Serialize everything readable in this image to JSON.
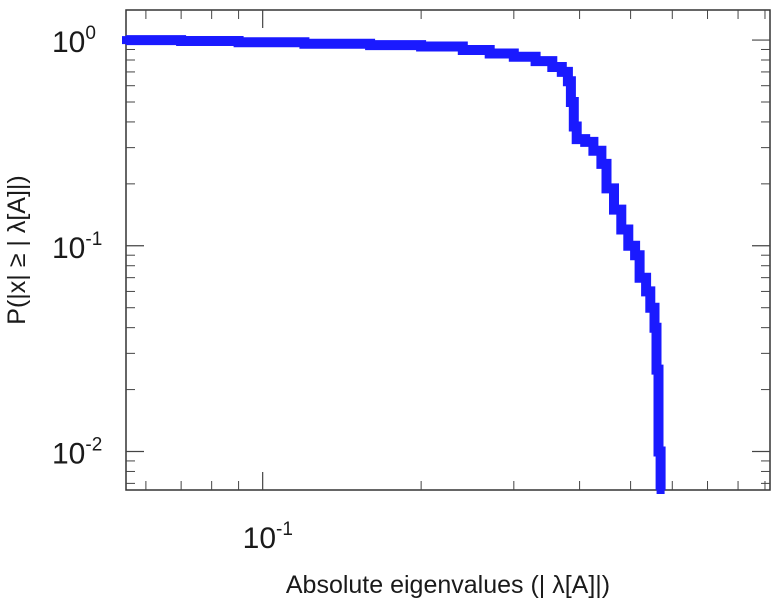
{
  "chart_data": {
    "type": "line",
    "title": "",
    "xlabel": "Absolute eigenvalues (|      λ[A]|)",
    "ylabel": "P(|x|  ≥ | λ[A]|)",
    "x_scale": "log",
    "y_scale": "log",
    "xlim": [
      0.055,
      0.92
    ],
    "ylim": [
      0.0065,
      1.4
    ],
    "grid": false,
    "x_ticks": [
      {
        "value": 0.1,
        "base": "10",
        "exp": "-1"
      }
    ],
    "y_ticks": [
      {
        "value": 1,
        "base": "10",
        "exp": "0"
      },
      {
        "value": 0.1,
        "base": "10",
        "exp": "-1"
      },
      {
        "value": 0.01,
        "base": "10",
        "exp": "-2"
      }
    ],
    "series": [
      {
        "color": "#1a1aff",
        "points": [
          [
            0.055,
            1.0
          ],
          [
            0.07,
            0.99
          ],
          [
            0.09,
            0.975
          ],
          [
            0.12,
            0.96
          ],
          [
            0.16,
            0.945
          ],
          [
            0.2,
            0.93
          ],
          [
            0.24,
            0.895
          ],
          [
            0.27,
            0.86
          ],
          [
            0.3,
            0.83
          ],
          [
            0.33,
            0.79
          ],
          [
            0.355,
            0.74
          ],
          [
            0.37,
            0.7
          ],
          [
            0.38,
            0.63
          ],
          [
            0.385,
            0.5
          ],
          [
            0.39,
            0.38
          ],
          [
            0.395,
            0.33
          ],
          [
            0.41,
            0.32
          ],
          [
            0.425,
            0.29
          ],
          [
            0.44,
            0.25
          ],
          [
            0.45,
            0.19
          ],
          [
            0.465,
            0.15
          ],
          [
            0.48,
            0.12
          ],
          [
            0.495,
            0.1
          ],
          [
            0.51,
            0.09
          ],
          [
            0.52,
            0.07
          ],
          [
            0.535,
            0.06
          ],
          [
            0.545,
            0.05
          ],
          [
            0.555,
            0.04
          ],
          [
            0.56,
            0.025
          ],
          [
            0.565,
            0.01
          ],
          [
            0.57,
            0.0065
          ]
        ]
      }
    ]
  }
}
